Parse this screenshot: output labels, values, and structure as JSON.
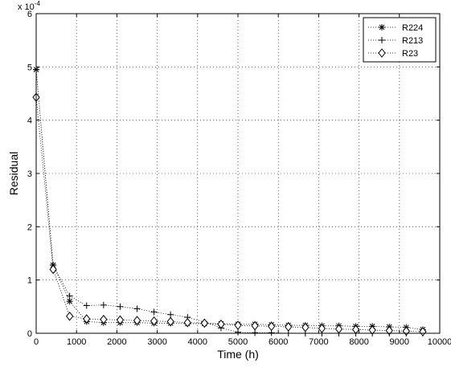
{
  "chart_data": {
    "type": "line",
    "title": "",
    "xlabel": "Time (h)",
    "ylabel": "Residual",
    "exponent_label": "x 10",
    "exponent_power": "-4",
    "xlim": [
      0,
      10000
    ],
    "ylim": [
      0,
      6
    ],
    "xticks": [
      0,
      1000,
      2000,
      3000,
      4000,
      5000,
      6000,
      7000,
      8000,
      9000,
      10000
    ],
    "yticks": [
      0,
      1,
      2,
      3,
      4,
      5,
      6
    ],
    "grid": true,
    "legend_position": "top-right",
    "series": [
      {
        "name": "R224",
        "marker": "asterisk",
        "x": [
          0,
          420,
          830,
          1250,
          1670,
          2080,
          2500,
          2920,
          3330,
          3750,
          4170,
          4580,
          5000,
          5420,
          5830,
          6250,
          6670,
          7080,
          7500,
          7920,
          8330,
          8750,
          9170,
          9580
        ],
        "y": [
          4.95,
          1.28,
          0.6,
          0.22,
          0.2,
          0.2,
          0.2,
          0.19,
          0.19,
          0.18,
          0.18,
          0.18,
          0.17,
          0.17,
          0.16,
          0.15,
          0.15,
          0.14,
          0.14,
          0.13,
          0.13,
          0.12,
          0.11,
          0.07
        ]
      },
      {
        "name": "R213",
        "marker": "plus",
        "x": [
          0,
          420,
          830,
          1250,
          1670,
          2080,
          2500,
          2920,
          3330,
          3750,
          4170,
          4580,
          5000,
          5420,
          5830,
          6250,
          6670,
          7080,
          7500,
          7920,
          8330,
          8750,
          9170,
          9580
        ],
        "y": [
          4.95,
          1.28,
          0.7,
          0.52,
          0.53,
          0.5,
          0.46,
          0.4,
          0.35,
          0.3,
          0.21,
          0.1,
          0.02,
          0.01,
          0.01,
          0.0,
          0.0,
          0.0,
          0.0,
          0.0,
          0.0,
          0.0,
          0.0,
          0.0
        ]
      },
      {
        "name": "R23",
        "marker": "diamond",
        "x": [
          0,
          420,
          830,
          1250,
          1670,
          2080,
          2500,
          2920,
          3330,
          3750,
          4170,
          4580,
          5000,
          5420,
          5830,
          6250,
          6670,
          7080,
          7500,
          7920,
          8330,
          8750,
          9170,
          9580
        ],
        "y": [
          4.43,
          1.2,
          0.32,
          0.27,
          0.26,
          0.25,
          0.24,
          0.23,
          0.22,
          0.2,
          0.19,
          0.17,
          0.15,
          0.14,
          0.13,
          0.12,
          0.11,
          0.09,
          0.08,
          0.07,
          0.06,
          0.05,
          0.04,
          0.03
        ]
      }
    ]
  }
}
